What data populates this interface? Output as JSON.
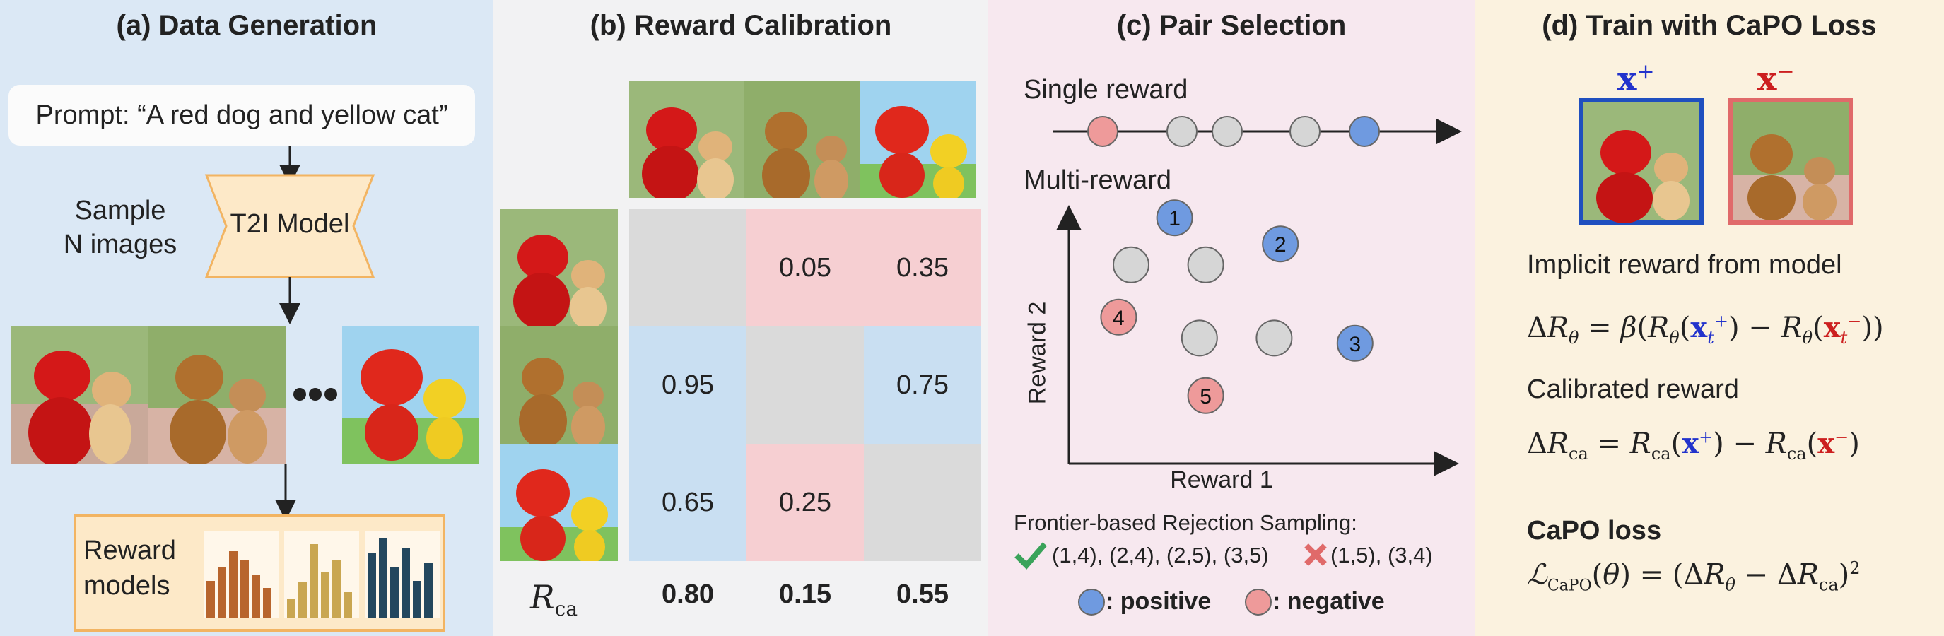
{
  "colors": {
    "panel_a_bg": "#dbe8f5",
    "panel_b_bg": "#f2f2f3",
    "panel_c_bg": "#f7e8ef",
    "panel_d_bg": "#fbf2df",
    "positive": "#6f9ae0",
    "negative": "#ee9a9a",
    "neutral": "#d6d6d6",
    "cell_red": "#f6cfd2",
    "cell_blue": "#c9dff2",
    "cell_gray": "#dadada",
    "plus_blue": "#2233cc",
    "minus_red": "#cc1f1f"
  },
  "panel_a": {
    "title": "(a) Data Generation",
    "prompt": "Prompt: “A red dog and yellow cat”",
    "sample_line1": "Sample",
    "sample_line2": "N images",
    "model_label": "T2I Model",
    "reward_line1": "Reward",
    "reward_line2": "models"
  },
  "panel_b": {
    "title": "(b) Reward Calibration",
    "matrix": [
      [
        "",
        "0.05",
        "0.35"
      ],
      [
        "0.95",
        "",
        "0.75"
      ],
      [
        "0.65",
        "0.25",
        ""
      ]
    ],
    "r_label": "R",
    "r_sub": "ca",
    "r_values": [
      "0.80",
      "0.15",
      "0.55"
    ]
  },
  "panel_c": {
    "title": "(c) Pair Selection",
    "single_label": "Single reward",
    "multi_label": "Multi-reward",
    "x_axis": "Reward 1",
    "y_axis": "Reward 2",
    "points": [
      {
        "label": "1",
        "kind": "positive",
        "r1": 1.7,
        "r2": 4.7
      },
      {
        "label": "2",
        "kind": "positive",
        "r1": 3.4,
        "r2": 4.2
      },
      {
        "label": "3",
        "kind": "positive",
        "r1": 4.6,
        "r2": 2.3
      },
      {
        "label": "4",
        "kind": "negative",
        "r1": 0.8,
        "r2": 2.8
      },
      {
        "label": "5",
        "kind": "negative",
        "r1": 2.2,
        "r2": 1.3
      },
      {
        "label": "",
        "kind": "neutral",
        "r1": 1.0,
        "r2": 3.8
      },
      {
        "label": "",
        "kind": "neutral",
        "r1": 2.2,
        "r2": 3.8
      },
      {
        "label": "",
        "kind": "neutral",
        "r1": 2.1,
        "r2": 2.4
      },
      {
        "label": "",
        "kind": "neutral",
        "r1": 3.3,
        "r2": 2.4
      }
    ],
    "rejection_title": "Frontier-based Rejection Sampling:",
    "accepted": "(1,4), (2,4), (2,5), (3,5)",
    "rejected": "(1,5), (3,4)",
    "legend_positive": ": positive",
    "legend_negative": ": negative"
  },
  "panel_d": {
    "title": "(d) Train with CaPO Loss",
    "x_plus": "x",
    "x_plus_sup": "+",
    "x_minus": "x",
    "x_minus_sup": "−",
    "implicit_label": "Implicit reward from model",
    "calibrated_label": "Calibrated reward",
    "loss_title": "CaPO loss"
  }
}
